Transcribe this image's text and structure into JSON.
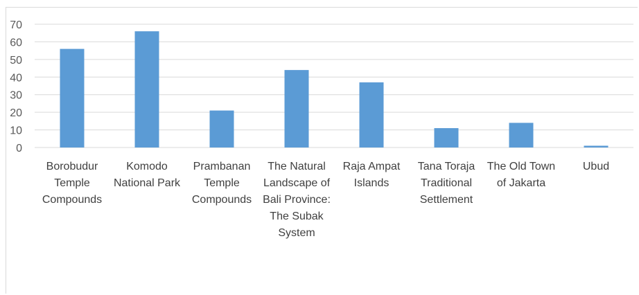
{
  "chart_data": {
    "type": "bar",
    "title": "",
    "xlabel": "",
    "ylabel": "",
    "ylim": [
      0,
      70
    ],
    "yticks": [
      0,
      10,
      20,
      30,
      40,
      50,
      60,
      70
    ],
    "grid": true,
    "legend": "none",
    "bar_color": "#5b9bd5",
    "grid_color": "#d9d9d9",
    "categories": [
      [
        "Borobudur",
        "Temple",
        "Compounds"
      ],
      [
        "Komodo",
        "National Park"
      ],
      [
        "Prambanan",
        "Temple",
        "Compounds"
      ],
      [
        "The Natural",
        "Landscape of",
        "Bali Province:",
        "The Subak",
        "System"
      ],
      [
        "Raja Ampat",
        "Islands"
      ],
      [
        "Tana Toraja",
        "Traditional",
        "Settlement"
      ],
      [
        "The Old Town",
        "of Jakarta"
      ],
      [
        "Ubud"
      ]
    ],
    "values": [
      56,
      66,
      21,
      44,
      37,
      11,
      14,
      1
    ]
  }
}
